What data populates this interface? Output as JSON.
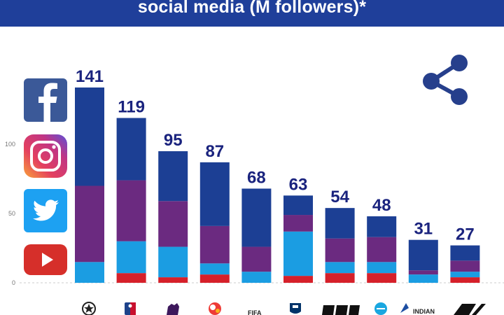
{
  "header": {
    "title": "social media (M followers)*"
  },
  "colors": {
    "header": "#1f3f9a",
    "facebook": "#1c3f94",
    "instagram": "#6b2a80",
    "twitter": "#1b9de2",
    "youtube": "#d6202a",
    "total_label": "#1a237e"
  },
  "icons": [
    "facebook-logo",
    "instagram-logo",
    "twitter-logo",
    "youtube-logo",
    "share-icon"
  ],
  "chart_data": {
    "type": "bar",
    "stacked": true,
    "categories": [
      "",
      "",
      "",
      "",
      "FIFA",
      "",
      "",
      "",
      "INDIAN",
      ""
    ],
    "totals": [
      141,
      119,
      95,
      87,
      68,
      63,
      54,
      48,
      31,
      27
    ],
    "series": [
      {
        "icon": "youtube-logo",
        "color": "#d6202a",
        "values": [
          0,
          7,
          4,
          6,
          0,
          5,
          7,
          7,
          0,
          4
        ]
      },
      {
        "icon": "twitter-logo",
        "color": "#1b9de2",
        "values": [
          15,
          23,
          22,
          8,
          8,
          32,
          8,
          8,
          6,
          4
        ]
      },
      {
        "icon": "instagram-logo",
        "color": "#6b2a80",
        "values": [
          55,
          44,
          33,
          27,
          18,
          12,
          17,
          18,
          3,
          8
        ]
      },
      {
        "icon": "facebook-logo",
        "color": "#1c3f94",
        "values": [
          71,
          45,
          36,
          46,
          42,
          14,
          22,
          15,
          22,
          11
        ]
      }
    ],
    "yticks": [
      0,
      50,
      100
    ],
    "ylim": [
      0,
      150
    ],
    "grid": false,
    "title": "social media (M followers)*"
  }
}
